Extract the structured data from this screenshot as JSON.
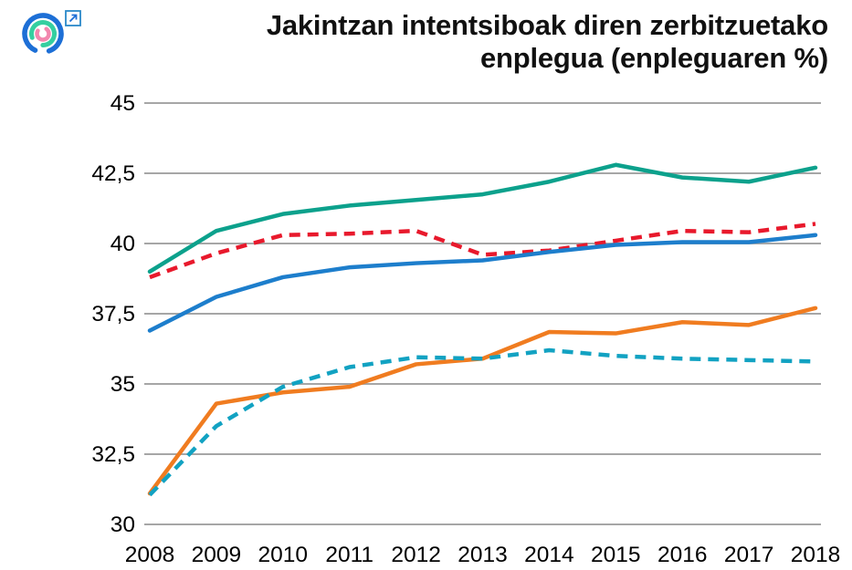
{
  "header": {
    "title_line1": "Jakintzan intentsiboak diren zerbitzuetako",
    "title_line2": "enplegua (enpleguaren %)",
    "logo_icon": "concentric-arcs-logo",
    "external_link_icon": "external-link-arrow"
  },
  "chart_data": {
    "type": "line",
    "title": "Jakintzan intentsiboak diren zerbitzuetako enplegua (enpleguaren %)",
    "categories": [
      "2008",
      "2009",
      "2010",
      "2011",
      "2012",
      "2013",
      "2014",
      "2015",
      "2016",
      "2017",
      "2018"
    ],
    "series": [
      {
        "name": "teal-solid-line",
        "style": "solid",
        "color": "#0ca18c",
        "values": [
          39.0,
          40.45,
          41.05,
          41.35,
          41.55,
          41.75,
          42.2,
          42.8,
          42.35,
          42.2,
          42.7
        ]
      },
      {
        "name": "red-dashed-line",
        "style": "dashed",
        "color": "#e8192c",
        "values": [
          38.8,
          39.65,
          40.3,
          40.35,
          40.45,
          39.6,
          39.75,
          40.1,
          40.45,
          40.4,
          40.7
        ]
      },
      {
        "name": "blue-solid-line",
        "style": "solid",
        "color": "#1d7ecc",
        "values": [
          36.9,
          38.1,
          38.8,
          39.15,
          39.3,
          39.4,
          39.7,
          39.95,
          40.05,
          40.05,
          40.3
        ]
      },
      {
        "name": "orange-solid-line",
        "style": "solid",
        "color": "#f07c20",
        "values": [
          31.1,
          34.3,
          34.7,
          34.9,
          35.7,
          35.9,
          36.85,
          36.8,
          37.2,
          37.1,
          37.7
        ]
      },
      {
        "name": "cyan-dashed-line",
        "style": "dashed",
        "color": "#12a2c2",
        "values": [
          31.05,
          33.5,
          34.9,
          35.6,
          35.95,
          35.9,
          36.2,
          36.0,
          35.9,
          35.85,
          35.8
        ]
      }
    ],
    "xlabel": "",
    "ylabel": "",
    "ylim": [
      30,
      45
    ],
    "yticks": [
      30,
      32.5,
      35,
      37.5,
      40,
      42.5,
      45
    ],
    "ytick_labels": [
      "30",
      "32,5",
      "35",
      "37,5",
      "40",
      "42,5",
      "45"
    ],
    "grid": true,
    "legend": "none",
    "gridline_color": "#a6a6a6",
    "tick_label_color": "#000000",
    "logo_colors": {
      "outer_blue": "#1d6fd6",
      "middle_green": "#35cfa0",
      "inner_pink": "#f287ae",
      "link_blue": "#2a89c9"
    }
  }
}
